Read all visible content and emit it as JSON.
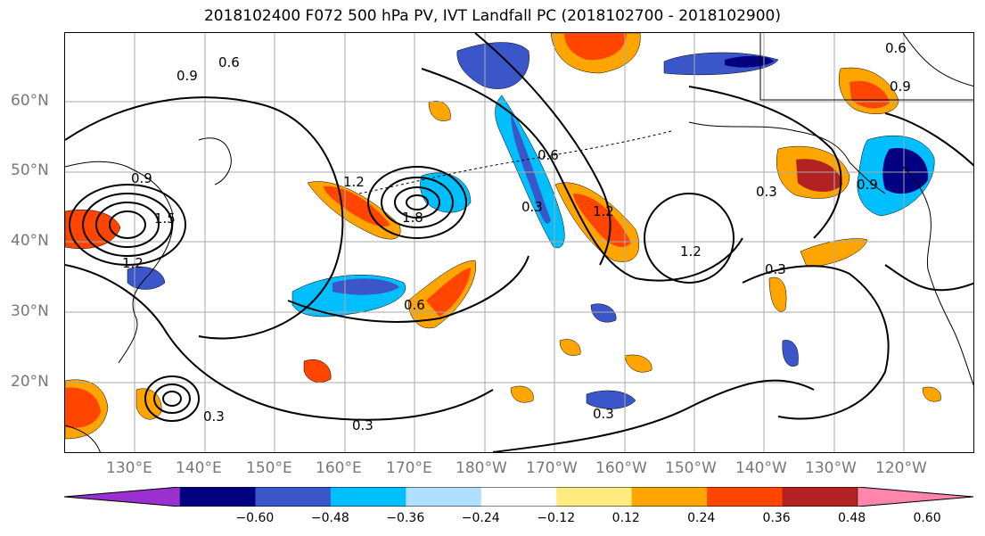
{
  "title": "2018102400 F072 500 hPa PV, IVT Landfall PC (2018102700 - 2018102900)",
  "lat_labels": [
    "60°N",
    "50°N",
    "40°N",
    "30°N",
    "20°N"
  ],
  "lon_labels": [
    "130°E",
    "140°E",
    "150°E",
    "160°E",
    "170°E",
    "180°W",
    "170°W",
    "160°W",
    "150°W",
    "140°W",
    "130°W",
    "120°W"
  ],
  "contour_labels": [
    "0.6",
    "0.9",
    "0.9",
    "1.2",
    "1.2",
    "1.2",
    "1.5",
    "1.8",
    "0.3",
    "0.3",
    "0.3",
    "0.3",
    "0.3",
    "0.6",
    "0.6",
    "0.6",
    "0.9",
    "1.2",
    "0.3",
    "0.9"
  ],
  "colorbar": {
    "colors": [
      "#9b30d0",
      "#000080",
      "#3a56c9",
      "#00bfff",
      "#b0e0ff",
      "#ffffff",
      "#ffeb80",
      "#ffa500",
      "#ff4500",
      "#b22222",
      "#ff85aa"
    ],
    "labels": [
      "−0.60",
      "−0.48",
      "−0.36",
      "−0.24",
      "−0.12",
      "0.12",
      "0.24",
      "0.36",
      "0.48",
      "0.60"
    ]
  }
}
